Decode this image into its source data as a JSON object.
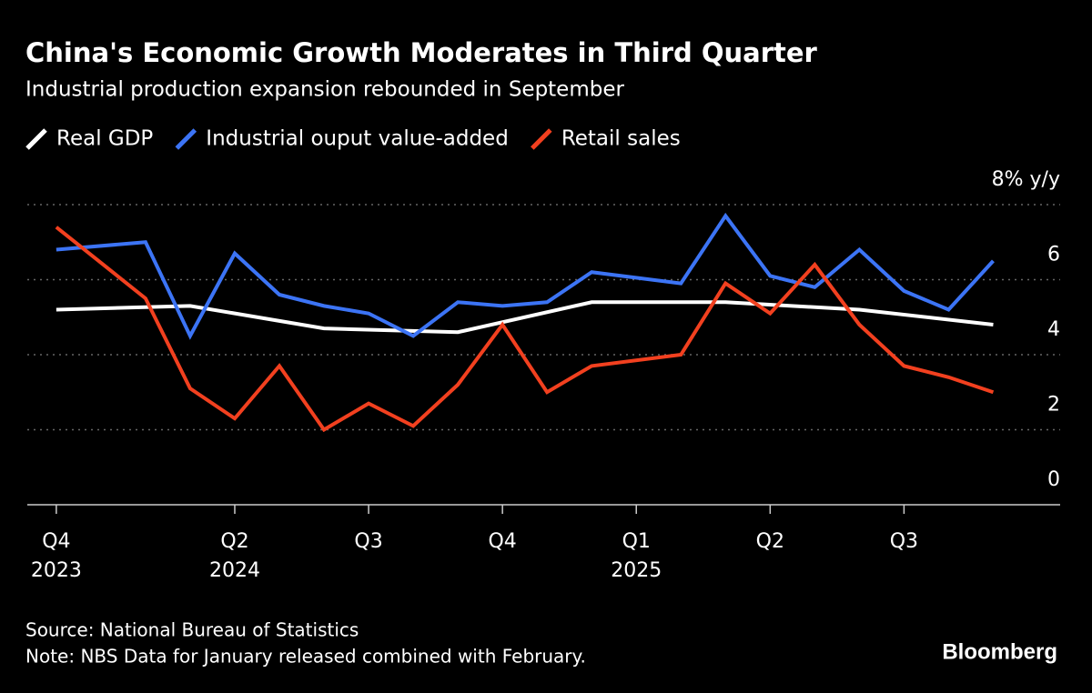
{
  "chart_data": {
    "type": "line",
    "title": "China's Economic Growth Moderates in Third Quarter",
    "subtitle": "Industrial production expansion rebounded in September",
    "source": "Source: National Bureau of Statistics",
    "note": "Note: NBS Data for January released combined with February.",
    "brand": "Bloomberg",
    "xlim": [
      -0.65,
      22.5
    ],
    "xticks": [
      {
        "value": 0,
        "label": "Q4"
      },
      {
        "value": 4,
        "label": "Q2"
      },
      {
        "value": 7,
        "label": "Q3"
      },
      {
        "value": 10,
        "label": "Q4"
      },
      {
        "value": 13,
        "label": "Q1"
      },
      {
        "value": 16,
        "label": "Q2"
      },
      {
        "value": 19,
        "label": "Q3"
      }
    ],
    "xtick_sublabels": [
      {
        "value": 0,
        "label": "2023"
      },
      {
        "value": 4,
        "label": "2024"
      },
      {
        "value": 13,
        "label": "2025"
      }
    ],
    "ylim": [
      0,
      8
    ],
    "yticks": [
      0,
      2,
      4,
      6,
      {
        "value": 8,
        "label": "8% y/y"
      }
    ],
    "grid": true,
    "series": [
      {
        "name": "Real GDP",
        "color": "#ffffff",
        "x": [
          0,
          3,
          6,
          9,
          12,
          15,
          18,
          21
        ],
        "values": [
          5.2,
          5.3,
          4.7,
          4.6,
          5.4,
          5.4,
          5.2,
          4.8
        ]
      },
      {
        "name": "Industrial ouput value-added",
        "color": "#3c74f5",
        "x": [
          0,
          2,
          3,
          4,
          5,
          6,
          7,
          8,
          9,
          10,
          11,
          12,
          14,
          15,
          16,
          17,
          18,
          19,
          20,
          21
        ],
        "values": [
          6.8,
          7.0,
          4.5,
          6.7,
          5.6,
          5.3,
          5.1,
          4.5,
          5.4,
          5.3,
          5.4,
          6.2,
          5.9,
          7.7,
          6.1,
          5.8,
          6.8,
          5.7,
          5.2,
          6.5
        ]
      },
      {
        "name": "Retail sales",
        "color": "#f2401f",
        "x": [
          0,
          2,
          3,
          4,
          5,
          6,
          7,
          8,
          9,
          10,
          11,
          12,
          14,
          15,
          16,
          17,
          18,
          19,
          20,
          21
        ],
        "values": [
          7.4,
          5.5,
          3.1,
          2.3,
          3.7,
          2.0,
          2.7,
          2.1,
          3.2,
          4.8,
          3.0,
          3.7,
          4.0,
          5.9,
          5.1,
          6.4,
          4.8,
          3.7,
          3.4,
          3.0
        ]
      }
    ]
  }
}
